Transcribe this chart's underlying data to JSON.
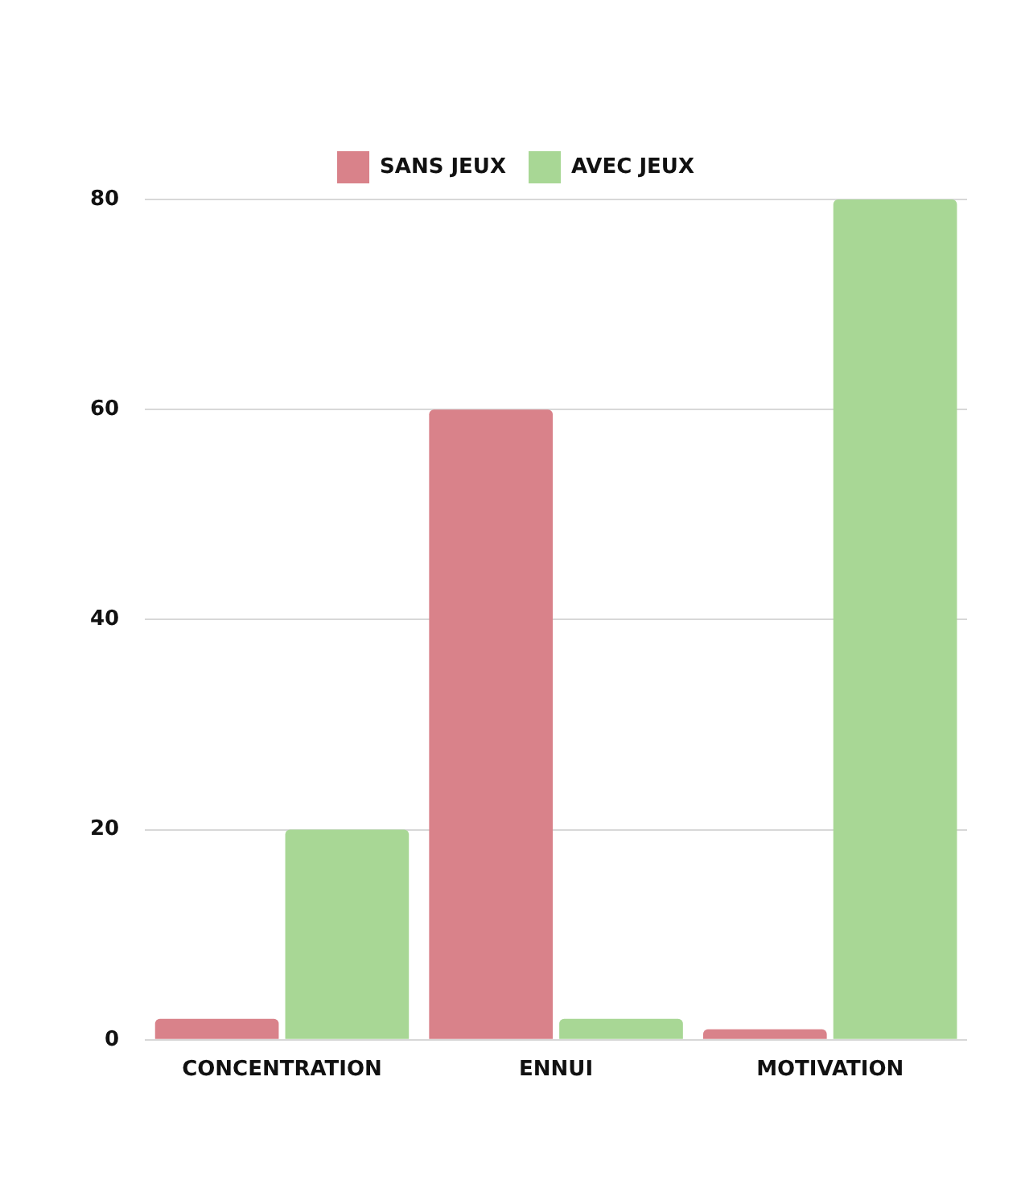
{
  "chart_data": {
    "type": "bar",
    "categories": [
      "CONCENTRATION",
      "ENNUI",
      "MOTIVATION"
    ],
    "series": [
      {
        "name": "SANS JEUX",
        "color": "#d9828a",
        "values": [
          2,
          60,
          1
        ]
      },
      {
        "name": "AVEC JEUX",
        "color": "#a8d795",
        "values": [
          20,
          2,
          80
        ]
      }
    ],
    "ylim": [
      0,
      80
    ],
    "yticks": [
      0,
      20,
      40,
      60,
      80
    ],
    "grid": "y",
    "legend": "top"
  }
}
